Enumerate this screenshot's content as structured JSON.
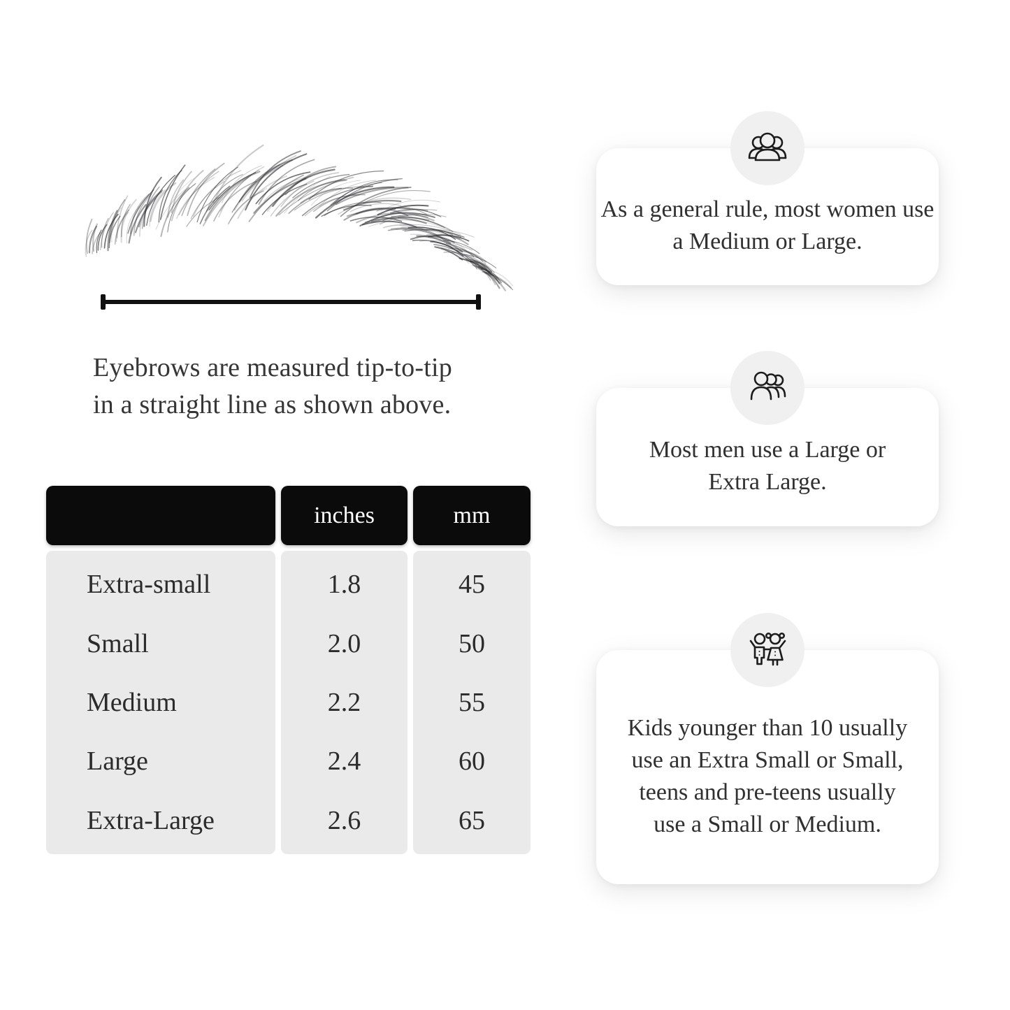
{
  "measure_section": {
    "caption_line1": "Eyebrows are measured tip-to-tip",
    "caption_line2": "in a straight line as shown above."
  },
  "size_table": {
    "headers": {
      "name": "",
      "inches": "inches",
      "mm": "mm"
    },
    "rows": [
      {
        "label": "Extra-small",
        "inches": "1.8",
        "mm": "45"
      },
      {
        "label": "Small",
        "inches": "2.0",
        "mm": "50"
      },
      {
        "label": "Medium",
        "inches": "2.2",
        "mm": "55"
      },
      {
        "label": "Large",
        "inches": "2.4",
        "mm": "60"
      },
      {
        "label": "Extra-Large",
        "inches": "2.6",
        "mm": "65"
      }
    ]
  },
  "tips": [
    {
      "icon": "women-group-icon",
      "text": "As a general rule, most women use a Medium or Large."
    },
    {
      "icon": "men-group-icon",
      "text": "Most men use a Large or Extra Large."
    },
    {
      "icon": "kids-icon",
      "text": "Kids younger than 10 usually use an Extra Small or Small, teens and pre-teens usually use a Small or Medium."
    }
  ],
  "colors": {
    "table_header_bg": "#0b0b0b",
    "table_header_text": "#ffffff",
    "table_body_bg": "#eaeaea",
    "text": "#333333",
    "card_bg": "#ffffff",
    "icon_circle_bg": "#f0f0f0",
    "icon_stroke": "#1c1c1c",
    "measure_line": "#111111"
  }
}
